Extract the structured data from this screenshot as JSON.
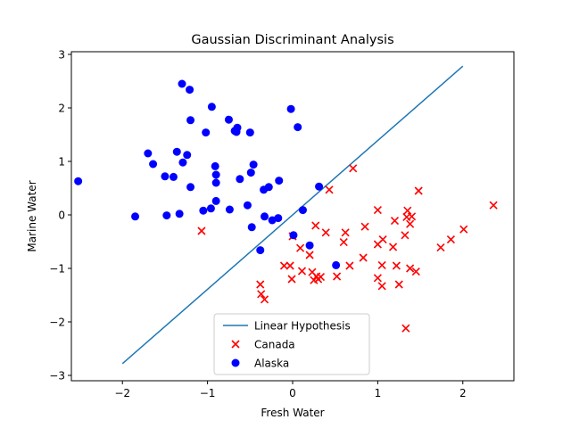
{
  "chart_data": {
    "type": "scatter",
    "title": "Gaussian Discriminant Analysis",
    "xlabel": "Fresh Water",
    "ylabel": "Marine Water",
    "xlim": [
      -2.6,
      2.6
    ],
    "ylim": [
      -3.1,
      3.05
    ],
    "xticks": [
      -2,
      -1,
      0,
      1,
      2
    ],
    "yticks": [
      -3,
      -2,
      -1,
      0,
      1,
      2,
      3
    ],
    "grid": false,
    "legend_position": "bottom-center",
    "series": [
      {
        "name": "Linear Hypothesis",
        "kind": "line",
        "color": "#1f77b4",
        "x": [
          -2.0,
          2.0
        ],
        "y": [
          -2.78,
          2.78
        ]
      },
      {
        "name": "Canada",
        "kind": "scatter",
        "marker": "x",
        "color": "#ff0000",
        "x": [
          -1.07,
          0.43,
          0.71,
          1.48,
          2.36,
          1.0,
          1.35,
          1.34,
          1.2,
          1.38,
          1.4,
          1.32,
          1.06,
          1.0,
          0.39,
          0.27,
          0.2,
          0.09,
          0.0,
          0.62,
          0.6,
          0.85,
          0.67,
          1.18,
          1.74,
          1.86,
          2.01,
          -0.1,
          -0.03,
          -0.01,
          -0.38,
          -0.37,
          -0.33,
          0.11,
          0.23,
          0.25,
          0.28,
          0.3,
          0.33,
          0.52,
          0.83,
          1.05,
          1.22,
          1.38,
          1.45,
          1.0,
          1.05,
          1.25,
          1.33
        ],
        "y": [
          -0.3,
          0.47,
          0.87,
          0.45,
          0.18,
          0.09,
          0.08,
          -0.04,
          -0.11,
          -0.17,
          -0.03,
          -0.38,
          -0.46,
          -0.55,
          -0.33,
          -0.2,
          -0.75,
          -0.62,
          -0.4,
          -0.33,
          -0.51,
          -0.22,
          -0.95,
          -0.6,
          -0.61,
          -0.46,
          -0.27,
          -0.95,
          -0.95,
          -1.2,
          -1.3,
          -1.48,
          -1.58,
          -1.05,
          -1.07,
          -1.22,
          -1.15,
          -1.2,
          -1.16,
          -1.15,
          -0.8,
          -0.94,
          -0.95,
          -1.0,
          -1.06,
          -1.18,
          -1.33,
          -1.3,
          -2.12
        ]
      },
      {
        "name": "Alaska",
        "kind": "scatter",
        "marker": "o",
        "color": "#0000ff",
        "x": [
          -2.52,
          -1.85,
          -1.7,
          -1.64,
          -1.5,
          -1.48,
          -1.4,
          -1.36,
          -1.33,
          -1.3,
          -1.29,
          -1.24,
          -1.21,
          -1.2,
          -1.2,
          -1.05,
          -1.02,
          -0.96,
          -0.95,
          -0.91,
          -0.9,
          -0.9,
          -0.9,
          -0.75,
          -0.74,
          -0.68,
          -0.66,
          -0.65,
          -0.62,
          -0.53,
          -0.5,
          -0.49,
          -0.48,
          -0.46,
          -0.38,
          -0.34,
          -0.33,
          -0.28,
          -0.24,
          -0.17,
          -0.16,
          -0.02,
          0.01,
          0.06,
          0.12,
          0.2,
          0.31,
          0.51
        ],
        "y": [
          0.63,
          -0.03,
          1.15,
          0.95,
          0.72,
          -0.01,
          0.71,
          1.18,
          0.02,
          2.45,
          0.98,
          1.12,
          2.34,
          1.77,
          0.52,
          0.08,
          1.54,
          0.12,
          2.02,
          0.91,
          0.75,
          0.6,
          0.26,
          1.78,
          0.1,
          1.57,
          1.55,
          1.63,
          0.67,
          0.18,
          1.54,
          0.79,
          -0.23,
          0.94,
          -0.66,
          0.47,
          -0.03,
          0.52,
          -0.1,
          -0.06,
          0.64,
          1.98,
          -0.38,
          1.64,
          0.09,
          -0.57,
          0.53,
          -0.94
        ]
      }
    ]
  }
}
